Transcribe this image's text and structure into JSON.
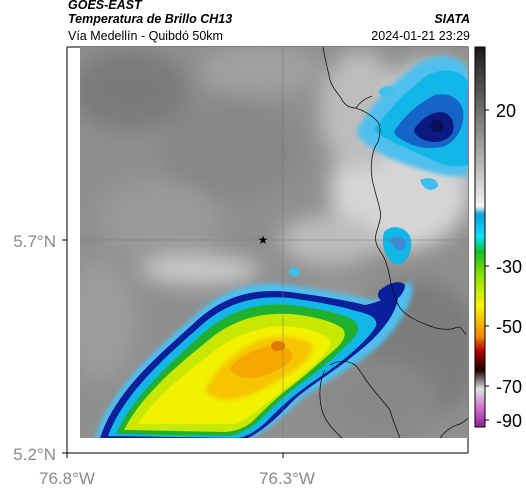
{
  "header": {
    "satellite": "GOES-EAST",
    "product": "Temperatura de Brillo CH13",
    "location": "Vía Medellín - Quibdó 50km",
    "organization": "SIATA",
    "timestamp": "2024-01-21 23:29"
  },
  "map": {
    "lat_ticks": [
      "5.7°N",
      "5.2°N"
    ],
    "lon_ticks": [
      "76.8°W",
      "76.3°W"
    ],
    "marker": "star-icon",
    "colors": {
      "background_gray": "#8f8f8f",
      "light_gray": "#d2d2d2",
      "cyan": "#10b4e6",
      "dark_blue": "#0c1a8a",
      "green": "#22bb22",
      "yellow": "#f0f000",
      "orange": "#f7b500"
    }
  },
  "colorbar": {
    "labels": [
      "20",
      "-30",
      "-50",
      "-70",
      "-90"
    ]
  }
}
